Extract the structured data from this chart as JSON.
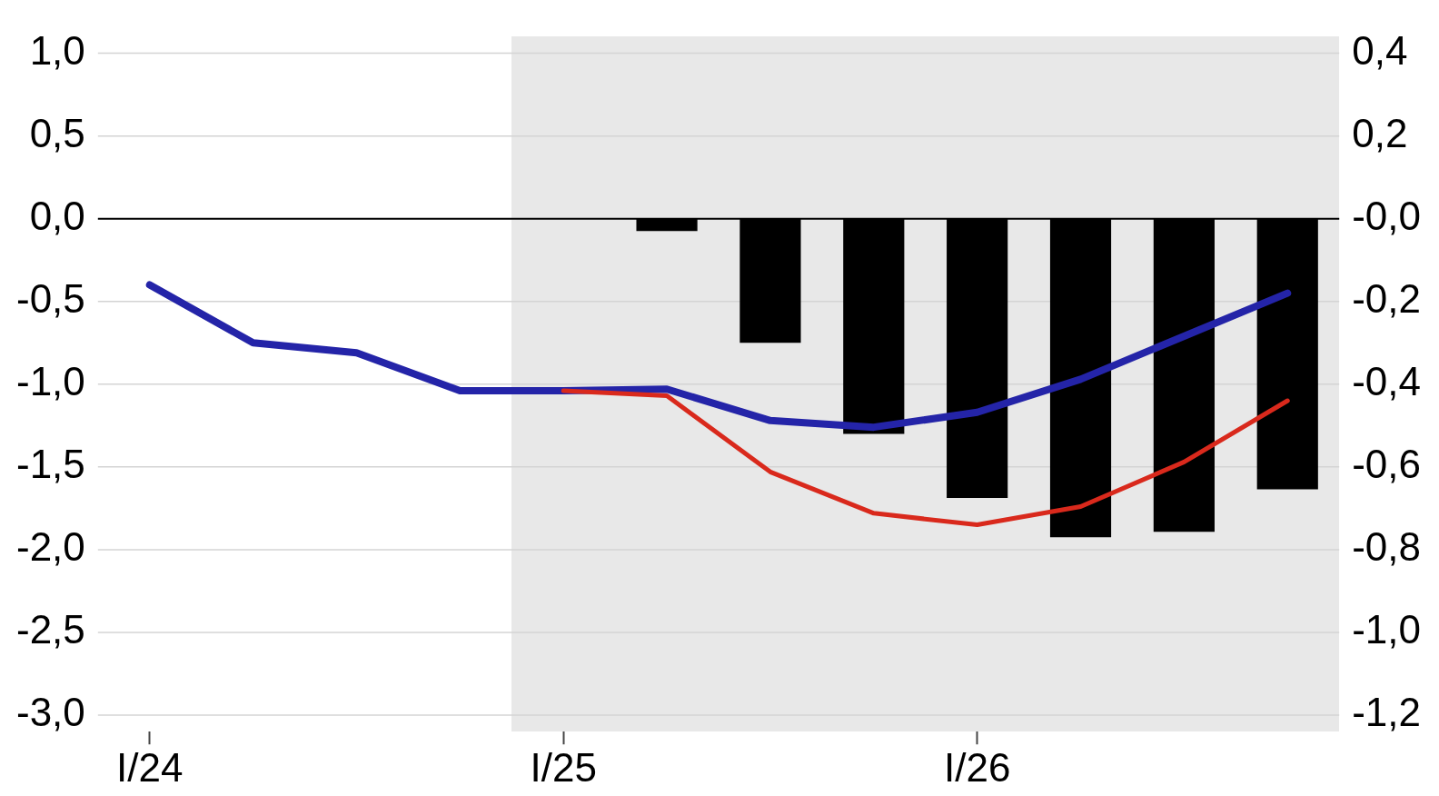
{
  "chart_data": {
    "type": "line",
    "categories": [
      "I/24",
      null,
      null,
      null,
      "I/25",
      null,
      null,
      null,
      "I/26",
      null,
      null,
      null
    ],
    "ylim": [
      -3.1,
      1.1
    ],
    "yticks": [
      {
        "value": -3,
        "label": "-3,0"
      },
      {
        "value": -2.5,
        "label": "-2,5"
      },
      {
        "value": -2,
        "label": "-2,0"
      },
      {
        "value": -1.5,
        "label": "-1,5"
      },
      {
        "value": -1,
        "label": "-1,0"
      },
      {
        "value": -0.5,
        "label": "-0,5"
      },
      {
        "value": 0,
        "label": "0,0"
      },
      {
        "value": 0.5,
        "label": "0,5"
      },
      {
        "value": 1,
        "label": "1,0"
      }
    ],
    "y2lim": [
      -1.24,
      0.44
    ],
    "y2ticks": [
      {
        "value": -1.2,
        "label": "-1,2"
      },
      {
        "value": -1,
        "label": "-1,0"
      },
      {
        "value": -0.8,
        "label": "-0,8"
      },
      {
        "value": -0.6,
        "label": "-0,6"
      },
      {
        "value": -0.4,
        "label": "-0,4"
      },
      {
        "value": -0.2,
        "label": "-0,2"
      },
      {
        "value": 0,
        "label": "-0,0"
      },
      {
        "value": 0.2,
        "label": "0,2"
      },
      {
        "value": 0.4,
        "label": "0,4"
      }
    ],
    "series": [
      {
        "type": "bar",
        "axis": "y2",
        "color": "#000000",
        "values": [
          null,
          null,
          null,
          null,
          null,
          -0.03,
          -0.3,
          -0.52,
          -0.675,
          -0.77,
          -0.757,
          -0.654
        ]
      },
      {
        "color": "#d9291c",
        "values": [
          null,
          null,
          null,
          null,
          -1.04,
          -1.07,
          -1.53,
          -1.78,
          -1.85,
          -1.74,
          -1.47,
          -1.1
        ]
      },
      {
        "color": "#2424a8",
        "values": [
          -0.4,
          -0.75,
          -0.81,
          -1.04,
          -1.04,
          -1.03,
          -1.22,
          -1.26,
          -1.17,
          -0.97,
          -0.71,
          -0.45
        ]
      }
    ],
    "ref_lines": [
      {
        "axis": "y",
        "value": 0,
        "color": "#000000"
      }
    ],
    "grid": "y",
    "legend": false
  }
}
